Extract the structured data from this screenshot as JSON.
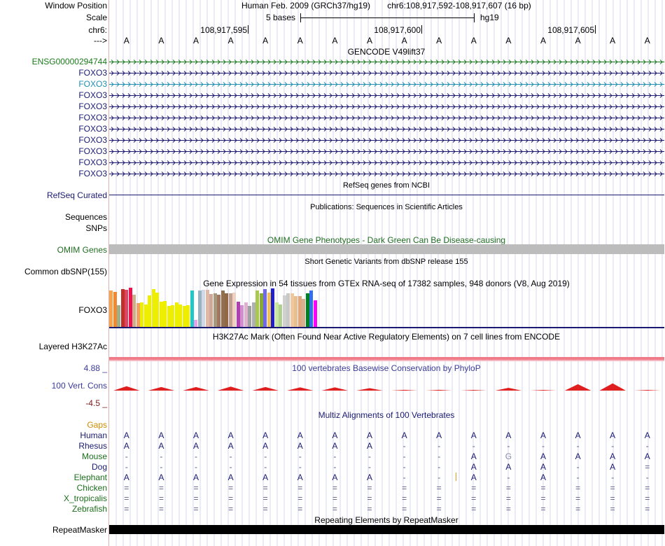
{
  "header": {
    "window_position_label": "Window Position",
    "assembly": "Human Feb. 2009 (GRCh37/hg19)",
    "position": "chr6:108,917,592-108,917,607 (16 bp)",
    "scale_label": "Scale",
    "scale_text": "5 bases",
    "scale_db": "hg19",
    "chrom_label": "chr6:",
    "strand_label": "--->",
    "coords": [
      "108,917,595",
      "108,917,600",
      "108,917,605"
    ],
    "bases": [
      "A",
      "A",
      "A",
      "A",
      "A",
      "A",
      "A",
      "A",
      "A",
      "A",
      "A",
      "A",
      "A",
      "A",
      "A",
      "A"
    ]
  },
  "gencode": {
    "title": "GENCODE V49lift37",
    "rows": [
      {
        "label": "ENSG00000294744",
        "color": "#1b7a1b"
      },
      {
        "label": "FOXO3",
        "color": "#1a1a70"
      },
      {
        "label": "FOXO3",
        "color": "#1f8fb0"
      },
      {
        "label": "FOXO3",
        "color": "#1a1a70"
      },
      {
        "label": "FOXO3",
        "color": "#1a1a70"
      },
      {
        "label": "FOXO3",
        "color": "#1a1a70"
      },
      {
        "label": "FOXO3",
        "color": "#1a1a70"
      },
      {
        "label": "FOXO3",
        "color": "#1a1a70"
      },
      {
        "label": "FOXO3",
        "color": "#1a1a70"
      },
      {
        "label": "FOXO3",
        "color": "#1a1a70"
      },
      {
        "label": "FOXO3",
        "color": "#1a1a70"
      }
    ]
  },
  "refseq": {
    "title": "RefSeq genes from NCBI",
    "label": "RefSeq Curated",
    "color": "#1a1a70"
  },
  "publications": {
    "title": "Publications: Sequences in Scientific Articles",
    "label1": "Sequences",
    "label2": "SNPs"
  },
  "omim": {
    "title": "OMIM Gene Phenotypes - Dark Green Can Be Disease-causing",
    "label": "OMIM Genes",
    "color": "#216d21",
    "bar_color": "#bcbcbc"
  },
  "dbsnp": {
    "title": "Short Genetic Variants from dbSNP release 155",
    "label": "Common dbSNP(155)"
  },
  "gtex": {
    "title": "Gene Expression in 54 tissues from GTEx RNA-seq of 17382 samples, 948 donors (V8, Aug 2019)",
    "label": "FOXO3",
    "bars": [
      {
        "color": "#f7a44a",
        "value": 0.92
      },
      {
        "color": "#f08a32",
        "value": 0.9
      },
      {
        "color": "#9cb08c",
        "value": 0.55
      },
      {
        "color": "#c0302a",
        "value": 0.96
      },
      {
        "color": "#e0455f",
        "value": 0.94
      },
      {
        "color": "#f01050",
        "value": 1.0
      },
      {
        "color": "#c7b08a",
        "value": 0.82
      },
      {
        "color": "#f0a060",
        "value": 0.6
      },
      {
        "color": "#eeee00",
        "value": 0.62
      },
      {
        "color": "#eeee00",
        "value": 0.58
      },
      {
        "color": "#eeee00",
        "value": 0.8
      },
      {
        "color": "#eeee00",
        "value": 0.96
      },
      {
        "color": "#eeee00",
        "value": 0.88
      },
      {
        "color": "#eeee00",
        "value": 0.64
      },
      {
        "color": "#eeee00",
        "value": 0.66
      },
      {
        "color": "#eeee00",
        "value": 0.54
      },
      {
        "color": "#eeee00",
        "value": 0.56
      },
      {
        "color": "#eeee00",
        "value": 0.62
      },
      {
        "color": "#eeee00",
        "value": 0.58
      },
      {
        "color": "#eeee00",
        "value": 0.54
      },
      {
        "color": "#eeee00",
        "value": 0.56
      },
      {
        "color": "#20c8c8",
        "value": 0.92
      },
      {
        "color": "#e8a0e8",
        "value": 0.18
      },
      {
        "color": "#98b4c0",
        "value": 0.92
      },
      {
        "color": "#d0d8e8",
        "value": 0.94
      },
      {
        "color": "#e0b8a8",
        "value": 0.94
      },
      {
        "color": "#d0a898",
        "value": 0.84
      },
      {
        "color": "#a89880",
        "value": 0.86
      },
      {
        "color": "#a07860",
        "value": 0.82
      },
      {
        "color": "#907050",
        "value": 0.92
      },
      {
        "color": "#906848",
        "value": 0.86
      },
      {
        "color": "#c0a090",
        "value": 0.86
      },
      {
        "color": "#f0d0c0",
        "value": 0.88
      },
      {
        "color": "#b040b0",
        "value": 0.64
      },
      {
        "color": "#d090d0",
        "value": 0.56
      },
      {
        "color": "#e0b0d0",
        "value": 0.62
      },
      {
        "color": "#a0a0a0",
        "value": 0.54
      },
      {
        "color": "#b0b0b0",
        "value": 0.62
      },
      {
        "color": "#a8c850",
        "value": 0.92
      },
      {
        "color": "#88aa30",
        "value": 0.86
      },
      {
        "color": "#7068e8",
        "value": 0.96
      },
      {
        "color": "#f0c060",
        "value": 0.88
      },
      {
        "color": "#2020c8",
        "value": 0.98
      },
      {
        "color": "#c8e8a0",
        "value": 0.62
      },
      {
        "color": "#b0d090",
        "value": 0.58
      },
      {
        "color": "#d0d0d0",
        "value": 0.8
      },
      {
        "color": "#c8c8c8",
        "value": 0.86
      },
      {
        "color": "#f0c8a0",
        "value": 0.86
      },
      {
        "color": "#e8c090",
        "value": 0.78
      },
      {
        "color": "#e0a880",
        "value": 0.78
      },
      {
        "color": "#d8b090",
        "value": 0.72
      },
      {
        "color": "#008020",
        "value": 0.86
      },
      {
        "color": "#3070f0",
        "value": 0.92
      },
      {
        "color": "#ff00ff",
        "value": 0.68
      }
    ]
  },
  "h3k27ac": {
    "title": "H3K27Ac Mark (Often Found Near Active Regulatory Elements) on 7 cell lines from ENCODE",
    "label": "Layered H3K27Ac"
  },
  "conservation": {
    "title": "100 vertebrates Basewise Conservation by PhyloP",
    "label": "100 Vert. Cons",
    "max": "4.88 _",
    "min": "-4.5 _",
    "scores": [
      2.2,
      1.8,
      1.8,
      2.0,
      1.8,
      1.6,
      1.6,
      1.2,
      0.4,
      0.4,
      0.2,
      1.4,
      0.2,
      3.2,
      3.6,
      0.2
    ]
  },
  "multiz": {
    "title": "Multiz Alignments of 100 Vertebrates",
    "gaps_label": "Gaps",
    "species": [
      {
        "name": "Human",
        "color": "#1a1a70",
        "bases": [
          "A",
          "A",
          "A",
          "A",
          "A",
          "A",
          "A",
          "A",
          "A",
          "A",
          "A",
          "A",
          "A",
          "A",
          "A",
          "A"
        ]
      },
      {
        "name": "Rhesus",
        "color": "#1a1a70",
        "bases": [
          "A",
          "A",
          "A",
          "A",
          "A",
          "A",
          "A",
          "A",
          "-",
          "-",
          "-",
          "-",
          "-",
          "-",
          "-",
          "-"
        ]
      },
      {
        "name": "Mouse",
        "color": "#1b6e1b",
        "bases": [
          "-",
          "-",
          "-",
          "-",
          "-",
          "-",
          "-",
          "-",
          "-",
          "-",
          "A",
          "G",
          "A",
          "A",
          "A",
          "A"
        ]
      },
      {
        "name": "Dog",
        "color": "#1a1a70",
        "bases": [
          "-",
          "-",
          "-",
          "-",
          "-",
          "-",
          "-",
          "-",
          "-",
          "-",
          "A",
          "A",
          "A",
          "-",
          "A",
          "="
        ]
      },
      {
        "name": "Elephant",
        "color": "#1b6e1b",
        "bases": [
          "A",
          "A",
          "A",
          "A",
          "A",
          "A",
          "A",
          "A",
          "-",
          "-",
          "A",
          "-",
          "A",
          "-",
          "-",
          "-"
        ]
      },
      {
        "name": "Chicken",
        "color": "#1b6e1b",
        "bases": [
          "=",
          "=",
          "=",
          "=",
          "=",
          "=",
          "=",
          "=",
          "=",
          "=",
          "=",
          "=",
          "=",
          "=",
          "=",
          "="
        ]
      },
      {
        "name": "X_tropicalis",
        "color": "#1b6e1b",
        "bases": [
          "=",
          "=",
          "=",
          "=",
          "=",
          "=",
          "=",
          "=",
          "=",
          "=",
          "=",
          "=",
          "=",
          "=",
          "=",
          "="
        ]
      },
      {
        "name": "Zebrafish",
        "color": "#1b6e1b",
        "bases": [
          "=",
          "=",
          "=",
          "=",
          "=",
          "=",
          "=",
          "=",
          "=",
          "=",
          "=",
          "=",
          "=",
          "=",
          "=",
          "="
        ]
      }
    ]
  },
  "repeatmasker": {
    "title": "Repeating Elements by RepeatMasker",
    "label": "RepeatMasker"
  }
}
